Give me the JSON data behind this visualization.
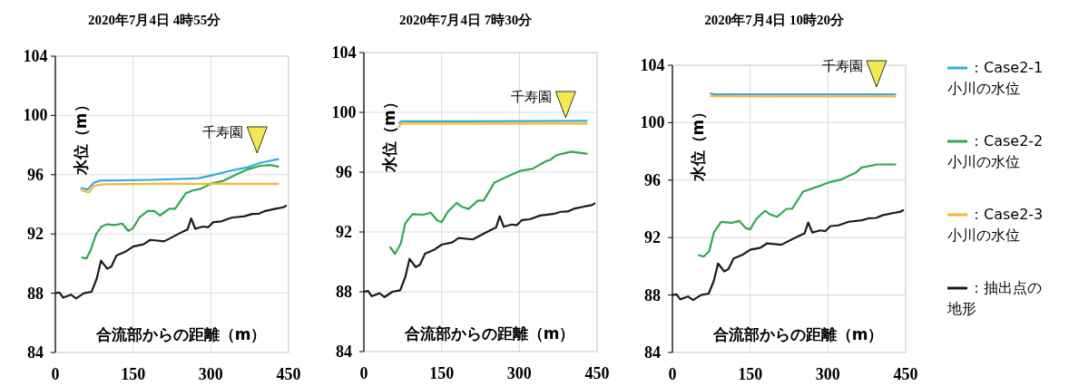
{
  "chart_data": [
    {
      "type": "line",
      "title": "2020年7月4日 4時55分",
      "xlabel": "合流部からの距離（m）",
      "ylabel": "水位（m）",
      "xlim": [
        0,
        450
      ],
      "ylim": [
        84,
        104
      ],
      "xticks": [
        0,
        150,
        300,
        450
      ],
      "yticks": [
        84,
        88,
        92,
        96,
        100,
        104
      ],
      "grid": true,
      "legend": false,
      "annotations": [
        "千寿園"
      ],
      "series": [
        {
          "color": "#3aa8e0",
          "x": [
            50,
            62,
            74,
            86,
            185,
            275,
            301,
            336,
            371,
            395,
            430
          ],
          "values": [
            95.1,
            95.0,
            95.45,
            95.6,
            95.65,
            95.75,
            95.95,
            96.25,
            96.5,
            96.8,
            97.05
          ]
        },
        {
          "color": "#2eaa4f",
          "x": [
            52,
            60,
            68,
            79,
            89,
            100,
            115,
            129,
            141,
            150,
            162,
            178,
            191,
            202,
            220,
            231,
            252,
            266,
            281,
            301,
            325,
            351,
            371,
            395,
            415,
            430
          ],
          "values": [
            90.4,
            90.35,
            90.9,
            92.0,
            92.5,
            92.65,
            92.6,
            92.7,
            92.2,
            92.4,
            93.1,
            93.55,
            93.55,
            93.25,
            93.7,
            93.7,
            94.75,
            94.95,
            95.05,
            95.4,
            95.6,
            96.05,
            96.35,
            96.6,
            96.65,
            96.55
          ]
        },
        {
          "color": "#f5b82e",
          "x": [
            50,
            65,
            74,
            92,
            185,
            430
          ],
          "values": [
            94.95,
            94.8,
            95.25,
            95.35,
            95.38,
            95.38
          ]
        },
        {
          "color": "#231815",
          "x": [
            0,
            8,
            15,
            30,
            40,
            55,
            70,
            80,
            88,
            100,
            108,
            118,
            135,
            150,
            170,
            183,
            210,
            240,
            255,
            262,
            270,
            285,
            295,
            305,
            320,
            340,
            365,
            380,
            393,
            405,
            425,
            440,
            445
          ],
          "values": [
            88.0,
            88.05,
            87.7,
            87.9,
            87.65,
            88.0,
            88.1,
            89.0,
            90.2,
            89.65,
            89.8,
            90.55,
            90.8,
            91.15,
            91.3,
            91.6,
            91.5,
            92.05,
            92.3,
            93.05,
            92.35,
            92.5,
            92.45,
            92.8,
            92.85,
            93.1,
            93.2,
            93.35,
            93.37,
            93.55,
            93.7,
            93.8,
            93.9
          ]
        }
      ]
    },
    {
      "type": "line",
      "title": "2020年7月4日 7時30分",
      "xlabel": "合流部からの距離（m）",
      "ylabel": "水位（m）",
      "xlim": [
        0,
        450
      ],
      "ylim": [
        84,
        104
      ],
      "xticks": [
        0,
        150,
        300,
        450
      ],
      "yticks": [
        84,
        88,
        92,
        96,
        100,
        104
      ],
      "grid": true,
      "legend": false,
      "annotations": [
        "千寿園"
      ],
      "series": [
        {
          "color": "#3aa8e0",
          "x": [
            68,
            72,
            200,
            430
          ],
          "values": [
            99.3,
            99.4,
            99.4,
            99.43
          ]
        },
        {
          "color": "#2eaa4f",
          "x": [
            51,
            60,
            71,
            80,
            94,
            115,
            129,
            141,
            150,
            162,
            179,
            188,
            202,
            220,
            231,
            252,
            278,
            301,
            325,
            351,
            360,
            371,
            400,
            430
          ],
          "values": [
            90.97,
            90.53,
            91.21,
            92.59,
            93.19,
            93.15,
            93.29,
            92.79,
            92.65,
            93.35,
            93.94,
            93.7,
            93.54,
            94.1,
            94.1,
            95.31,
            95.72,
            96.08,
            96.22,
            96.73,
            96.83,
            97.13,
            97.37,
            97.23
          ]
        },
        {
          "color": "#f5b82e",
          "x": [
            68,
            72,
            200,
            430
          ],
          "values": [
            99.05,
            99.25,
            99.25,
            99.25
          ]
        },
        {
          "color": "#231815",
          "x": [
            0,
            8,
            15,
            30,
            40,
            55,
            70,
            80,
            88,
            100,
            108,
            118,
            135,
            150,
            170,
            183,
            210,
            240,
            255,
            262,
            270,
            285,
            295,
            305,
            320,
            340,
            365,
            380,
            393,
            405,
            425,
            440,
            445
          ],
          "values": [
            88.0,
            88.05,
            87.7,
            87.9,
            87.65,
            88.0,
            88.1,
            89.0,
            90.2,
            89.65,
            89.8,
            90.55,
            90.8,
            91.15,
            91.3,
            91.6,
            91.5,
            92.05,
            92.3,
            93.05,
            92.35,
            92.5,
            92.45,
            92.8,
            92.85,
            93.1,
            93.2,
            93.35,
            93.37,
            93.55,
            93.7,
            93.8,
            93.9
          ]
        }
      ]
    },
    {
      "type": "line",
      "title": "2020年7月4日 10時20分",
      "xlabel": "合流部からの距離（m）",
      "ylabel": "水位（m）",
      "xlim": [
        0,
        450
      ],
      "ylim": [
        84,
        104
      ],
      "xticks": [
        0,
        150,
        300,
        450
      ],
      "yticks": [
        84,
        88,
        92,
        96,
        100,
        104
      ],
      "grid": true,
      "legend": "right",
      "annotations": [
        "千寿園"
      ],
      "series": [
        {
          "name": "：Case2-1 小川の水位",
          "color": "#3aa8e0",
          "x": [
            74,
            80,
            200,
            430
          ],
          "values": [
            102.04,
            101.98,
            101.98,
            101.98
          ]
        },
        {
          "name": "：Case2-2 小川の水位",
          "color": "#2eaa4f",
          "x": [
            51,
            60,
            71,
            80,
            94,
            115,
            129,
            141,
            150,
            162,
            179,
            188,
            202,
            220,
            231,
            252,
            278,
            301,
            325,
            354,
            365,
            395,
            430
          ],
          "values": [
            90.78,
            90.67,
            91.05,
            92.36,
            93.09,
            93.03,
            93.16,
            92.67,
            92.57,
            93.31,
            93.87,
            93.62,
            93.45,
            94.0,
            94.0,
            95.2,
            95.52,
            95.83,
            96.04,
            96.53,
            96.88,
            97.09,
            97.09
          ]
        },
        {
          "name": "：Case2-3 小川の水位",
          "color": "#f5b82e",
          "x": [
            74,
            200,
            430
          ],
          "values": [
            101.85,
            101.83,
            101.83
          ]
        },
        {
          "name": "：抽出点の地形",
          "color": "#231815",
          "x": [
            0,
            8,
            15,
            30,
            40,
            55,
            70,
            80,
            88,
            100,
            108,
            118,
            135,
            150,
            170,
            183,
            210,
            240,
            255,
            262,
            270,
            285,
            295,
            305,
            320,
            340,
            365,
            380,
            393,
            405,
            425,
            440,
            445
          ],
          "values": [
            88.0,
            88.05,
            87.7,
            87.9,
            87.65,
            88.0,
            88.1,
            89.0,
            90.2,
            89.65,
            89.8,
            90.55,
            90.8,
            91.15,
            91.3,
            91.6,
            91.5,
            92.05,
            92.3,
            93.05,
            92.35,
            92.5,
            92.45,
            92.8,
            92.85,
            93.1,
            93.2,
            93.35,
            93.37,
            93.55,
            93.7,
            93.8,
            93.9
          ]
        }
      ]
    }
  ]
}
